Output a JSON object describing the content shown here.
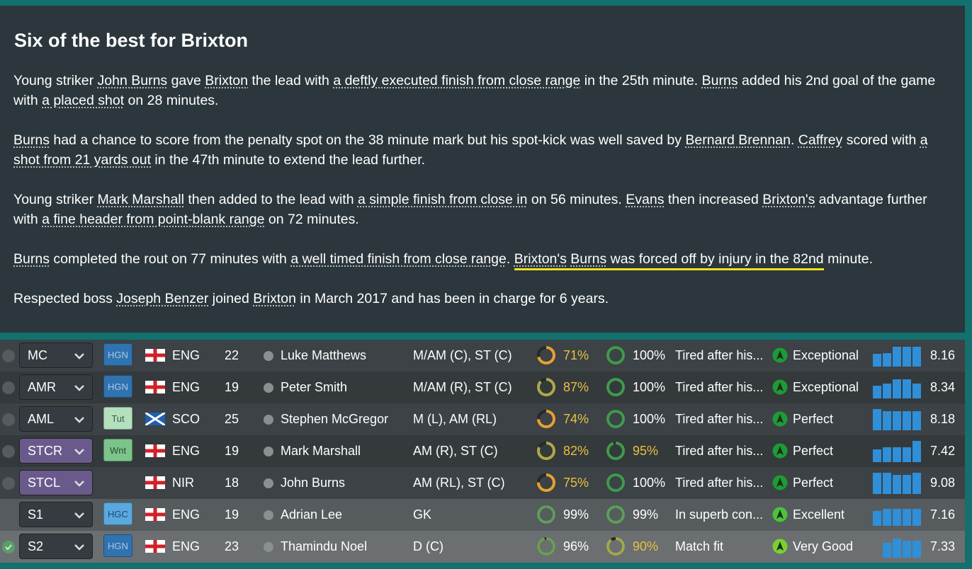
{
  "article": {
    "title": "Six of the best for Brixton",
    "paragraphs": [
      [
        {
          "text": "Young striker "
        },
        {
          "text": "John Burns",
          "link": true
        },
        {
          "text": " gave "
        },
        {
          "text": "Brixton",
          "link": true
        },
        {
          "text": " the lead with "
        },
        {
          "text": "a deftly executed finish from close range",
          "link": true
        },
        {
          "text": " in the 25th minute. "
        },
        {
          "text": "Burns",
          "link": true
        },
        {
          "text": " added his 2nd goal of the game with "
        },
        {
          "text": "a placed shot",
          "link": true
        },
        {
          "text": " on 28 minutes."
        }
      ],
      [
        {
          "text": "Burns",
          "link": true
        },
        {
          "text": " had a chance to score from the penalty spot on the 38 minute mark but his spot-kick was well saved by "
        },
        {
          "text": "Bernard Brennan",
          "link": true
        },
        {
          "text": ". "
        },
        {
          "text": "Caffrey",
          "link": true
        },
        {
          "text": " scored with "
        },
        {
          "text": "a shot from 21 yards out",
          "link": true
        },
        {
          "text": " in the 47th minute to extend the lead further."
        }
      ],
      [
        {
          "text": "Young striker "
        },
        {
          "text": "Mark Marshall",
          "link": true
        },
        {
          "text": " then added to the lead with "
        },
        {
          "text": "a simple finish from close in",
          "link": true
        },
        {
          "text": " on 56 minutes. "
        },
        {
          "text": "Evans",
          "link": true
        },
        {
          "text": " then increased "
        },
        {
          "text": "Brixton's",
          "link": true
        },
        {
          "text": " advantage further with "
        },
        {
          "text": "a fine header from point-blank range",
          "link": true
        },
        {
          "text": " on 72 minutes."
        }
      ],
      [
        {
          "text": "Burns",
          "link": true
        },
        {
          "text": " completed the rout on 77 minutes with "
        },
        {
          "text": "a well timed finish from close range",
          "link": true
        },
        {
          "text": ". "
        },
        {
          "text": "Brixton's",
          "link": true,
          "highlight": true
        },
        {
          "text": " ",
          "highlight": true
        },
        {
          "text": "Burns",
          "link": true,
          "highlight": true
        },
        {
          "text": " was forced off by injury in the 82nd",
          "highlight": true
        },
        {
          "text": " minute."
        }
      ],
      [
        {
          "text": "Respected boss "
        },
        {
          "text": "Joseph Benzer",
          "link": true
        },
        {
          "text": " joined "
        },
        {
          "text": "Brixton",
          "link": true
        },
        {
          "text": " in March 2017 and has been in charge for 6 years."
        }
      ]
    ]
  },
  "table": {
    "rows": [
      {
        "selected": false,
        "position": "MC",
        "position_color": "#353b40",
        "badge": {
          "label": "HGN",
          "color": "#2f73b0",
          "text_color": "#a8c8e8"
        },
        "nation": "ENG",
        "age": 22,
        "name": "Luke Matthews",
        "positions": "M/AM (C), ST (C)",
        "condition": {
          "value": 71,
          "label": "71%",
          "color": "#e8a030",
          "label_color": "#e8c040"
        },
        "sharpness": {
          "value": 100,
          "label": "100%",
          "color": "#3f9a4c",
          "label_color": "#ffffff"
        },
        "status": "Tired after his...",
        "rating_text": "Exceptional",
        "rating_color": "#1f9a35",
        "form": [
          6,
          6.5,
          9.5,
          9.5,
          9.5
        ],
        "average": 8.16
      },
      {
        "selected": false,
        "position": "AMR",
        "position_color": "#353b40",
        "badge": {
          "label": "HGN",
          "color": "#2f73b0",
          "text_color": "#a8c8e8"
        },
        "nation": "ENG",
        "age": 19,
        "name": "Peter Smith",
        "positions": "M/AM (R), ST (C)",
        "condition": {
          "value": 87,
          "label": "87%",
          "color": "#b0a848",
          "label_color": "#e8c040"
        },
        "sharpness": {
          "value": 100,
          "label": "100%",
          "color": "#3f9a4c",
          "label_color": "#ffffff"
        },
        "status": "Tired after his...",
        "rating_text": "Exceptional",
        "rating_color": "#1f9a35",
        "form": [
          6,
          7,
          9,
          9,
          7
        ],
        "average": 8.34
      },
      {
        "selected": false,
        "position": "AML",
        "position_color": "#353b40",
        "badge": {
          "label": "Tut",
          "color": "#b4e0be",
          "text_color": "#3c5a44"
        },
        "nation": "SCO",
        "age": 25,
        "name": "Stephen McGregor",
        "positions": "M (L), AM (RL)",
        "condition": {
          "value": 74,
          "label": "74%",
          "color": "#e8a030",
          "label_color": "#e8c040"
        },
        "sharpness": {
          "value": 100,
          "label": "100%",
          "color": "#3f9a4c",
          "label_color": "#ffffff"
        },
        "status": "Tired after his...",
        "rating_text": "Perfect",
        "rating_color": "#1f9a35",
        "form": [
          10,
          9,
          9,
          9,
          9
        ],
        "average": 8.18
      },
      {
        "selected": false,
        "position": "STCR",
        "position_color": "#6a5a8c",
        "badge": {
          "label": "Wnt",
          "color": "#7cc48a",
          "text_color": "#2c4a34"
        },
        "nation": "ENG",
        "age": 19,
        "name": "Mark Marshall",
        "positions": "AM (R), ST (C)",
        "condition": {
          "value": 82,
          "label": "82%",
          "color": "#b0a848",
          "label_color": "#e8c040"
        },
        "sharpness": {
          "value": 95,
          "label": "95%",
          "color": "#3f9a4c",
          "label_color": "#e8c040"
        },
        "status": "Tired after his...",
        "rating_text": "Perfect",
        "rating_color": "#1f9a35",
        "form": [
          6,
          7,
          7,
          7,
          10
        ],
        "average": 7.42
      },
      {
        "selected": false,
        "position": "STCL",
        "position_color": "#6a5a8c",
        "nation": "NIR",
        "age": 18,
        "name": "John Burns",
        "positions": "AM (RL), ST (C)",
        "condition": {
          "value": 75,
          "label": "75%",
          "color": "#e8a030",
          "label_color": "#e8c040"
        },
        "sharpness": {
          "value": 100,
          "label": "100%",
          "color": "#3f9a4c",
          "label_color": "#ffffff"
        },
        "status": "Tired after his...",
        "rating_text": "Perfect",
        "rating_color": "#1f9a35",
        "form": [
          10,
          10,
          9,
          9,
          10
        ],
        "average": 9.08
      },
      {
        "selected": false,
        "position": "S1",
        "position_color": "#353b40",
        "badge": {
          "label": "HGC",
          "color": "#5aa8e0",
          "text_color": "#1e4a70"
        },
        "nation": "ENG",
        "age": 19,
        "name": "Adrian Lee",
        "positions": "GK",
        "condition": {
          "value": 99,
          "label": "99%",
          "color": "#5e9e5a",
          "label_color": "#ffffff"
        },
        "sharpness": {
          "value": 99,
          "label": "99%",
          "color": "#5e9e5a",
          "label_color": "#ffffff"
        },
        "status": "In superb con...",
        "rating_text": "Excellent",
        "rating_color": "#4cc23a",
        "form": [
          7,
          8,
          8,
          8,
          8
        ],
        "average": 7.16
      },
      {
        "selected": true,
        "position": "S2",
        "position_color": "#353b40",
        "badge": {
          "label": "HGN",
          "color": "#2f73b0",
          "text_color": "#a8c8e8"
        },
        "nation": "ENG",
        "age": 23,
        "name": "Thamindu Noel",
        "positions": "D (C)",
        "condition": {
          "value": 96,
          "label": "96%",
          "color": "#6a9e54",
          "label_color": "#ffffff"
        },
        "sharpness": {
          "value": 90,
          "label": "90%",
          "color": "#a0a84a",
          "label_color": "#e8c040"
        },
        "status": "Match fit",
        "rating_text": "Very Good",
        "rating_color": "#7ad030",
        "form": [
          7,
          9,
          8,
          8
        ],
        "average": 7.33
      }
    ]
  }
}
